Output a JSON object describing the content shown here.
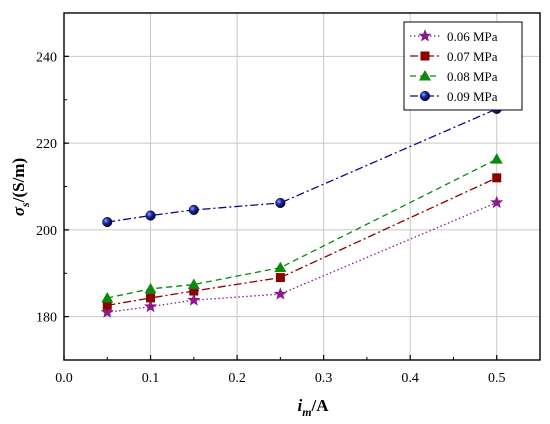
{
  "chart_data": {
    "type": "line",
    "x": [
      0.05,
      0.1,
      0.15,
      0.25,
      0.5
    ],
    "xlim": [
      0.0,
      0.55
    ],
    "ylim": [
      170,
      250
    ],
    "xticks": [
      "0.0",
      "0.1",
      "0.2",
      "0.3",
      "0.4",
      "0.5"
    ],
    "yticks": [
      "180",
      "200",
      "220",
      "240"
    ],
    "xlabel": {
      "main": "i",
      "sub": "m",
      "rest": "/A"
    },
    "ylabel": {
      "main": "σ",
      "sub": "s",
      "rest": "/(S/m)"
    },
    "grid": true,
    "legend_position": "top-right",
    "series": [
      {
        "name": "0.06 MPa",
        "values": [
          181.0,
          182.3,
          183.8,
          185.2,
          206.3
        ],
        "color": "#8b1a8b",
        "marker": "star",
        "dash": "dot"
      },
      {
        "name": "0.07 MPa",
        "values": [
          182.6,
          184.3,
          185.9,
          189.0,
          212.0
        ],
        "color": "#8b0000",
        "marker": "square",
        "dash": "dashdot"
      },
      {
        "name": "0.08 MPa",
        "values": [
          184.3,
          186.4,
          187.4,
          191.3,
          216.3
        ],
        "color": "#0a8a0a",
        "marker": "triangle",
        "dash": "dash"
      },
      {
        "name": "0.09 MPa",
        "values": [
          201.8,
          203.3,
          204.6,
          206.2,
          227.9
        ],
        "color": "#0a0a8c",
        "marker": "circle",
        "dash": "dashdot"
      }
    ]
  }
}
